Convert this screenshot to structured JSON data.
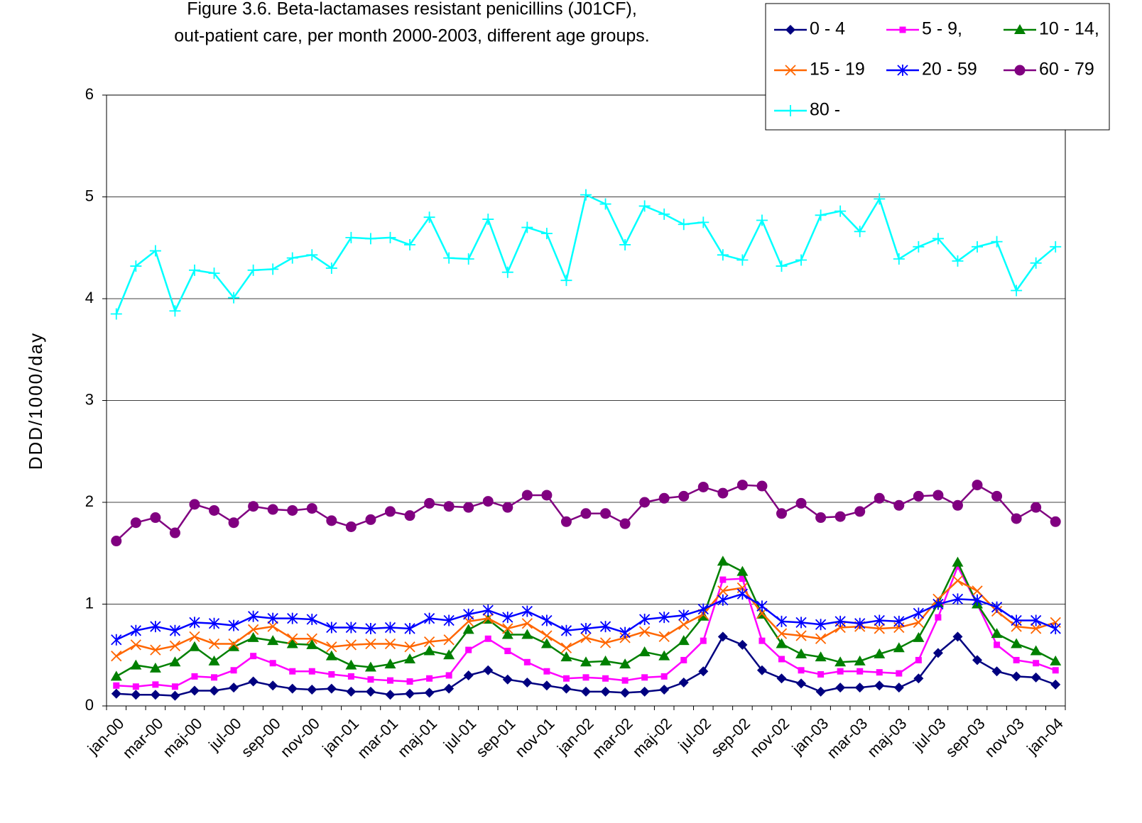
{
  "chart_data": {
    "type": "line",
    "title": [
      "Figure 3.6. Beta-lactamases resistant penicillins (J01CF),",
      "out-patient care, per month 2000-2003, different age groups."
    ],
    "y_label": "DDD/1000/day",
    "categories": [
      "jan-00",
      null,
      "mar-00",
      null,
      "maj-00",
      null,
      "jul-00",
      null,
      "sep-00",
      null,
      "nov-00",
      null,
      "jan-01",
      null,
      "mar-01",
      null,
      "maj-01",
      null,
      "jul-01",
      null,
      "sep-01",
      null,
      "nov-01",
      null,
      "jan-02",
      null,
      "mar-02",
      null,
      "maj-02",
      null,
      "jul-02",
      null,
      "sep-02",
      null,
      "nov-02",
      null,
      "jan-03",
      null,
      "mar-03",
      null,
      "maj-03",
      null,
      "jul-03",
      null,
      "sep-03",
      null,
      "nov-03",
      null,
      "jan-04"
    ],
    "ylim": [
      0,
      6
    ],
    "yticks": [
      0,
      1,
      2,
      3,
      4,
      5,
      6
    ],
    "grid": true,
    "legend": "top-right",
    "series": [
      {
        "name": "0 - 4",
        "color": "#000080",
        "marker": "diamond",
        "values": [
          0.12,
          0.11,
          0.11,
          0.1,
          0.15,
          0.15,
          0.18,
          0.24,
          0.2,
          0.17,
          0.16,
          0.17,
          0.14,
          0.14,
          0.11,
          0.12,
          0.13,
          0.17,
          0.3,
          0.35,
          0.26,
          0.23,
          0.2,
          0.17,
          0.14,
          0.14,
          0.13,
          0.14,
          0.16,
          0.23,
          0.34,
          0.68,
          0.6,
          0.35,
          0.27,
          0.22,
          0.14,
          0.18,
          0.18,
          0.2,
          0.18,
          0.27,
          0.52,
          0.68,
          0.45,
          0.34,
          0.29,
          0.28,
          0.21
        ]
      },
      {
        "name": "5 - 9,",
        "color": "#ff00ff",
        "marker": "square",
        "values": [
          0.2,
          0.19,
          0.21,
          0.19,
          0.29,
          0.28,
          0.35,
          0.49,
          0.42,
          0.34,
          0.34,
          0.31,
          0.29,
          0.26,
          0.25,
          0.24,
          0.27,
          0.3,
          0.55,
          0.66,
          0.54,
          0.43,
          0.34,
          0.27,
          0.28,
          0.27,
          0.25,
          0.28,
          0.29,
          0.45,
          0.64,
          1.24,
          1.25,
          0.64,
          0.46,
          0.35,
          0.31,
          0.34,
          0.34,
          0.33,
          0.32,
          0.45,
          0.87,
          1.37,
          1.0,
          0.6,
          0.45,
          0.42,
          0.35
        ]
      },
      {
        "name": "10 - 14,",
        "color": "#008000",
        "marker": "triangle",
        "values": [
          0.29,
          0.4,
          0.37,
          0.43,
          0.58,
          0.44,
          0.58,
          0.67,
          0.64,
          0.61,
          0.6,
          0.49,
          0.4,
          0.38,
          0.41,
          0.46,
          0.54,
          0.5,
          0.75,
          0.85,
          0.7,
          0.7,
          0.61,
          0.48,
          0.43,
          0.44,
          0.41,
          0.53,
          0.49,
          0.64,
          0.88,
          1.42,
          1.32,
          0.9,
          0.61,
          0.51,
          0.48,
          0.43,
          0.44,
          0.51,
          0.57,
          0.67,
          1.01,
          1.41,
          1.0,
          0.71,
          0.61,
          0.54,
          0.44
        ]
      },
      {
        "name": "15 - 19",
        "color": "#ff6600",
        "marker": "x",
        "values": [
          0.49,
          0.6,
          0.55,
          0.59,
          0.68,
          0.61,
          0.61,
          0.75,
          0.78,
          0.66,
          0.66,
          0.58,
          0.6,
          0.61,
          0.61,
          0.58,
          0.63,
          0.65,
          0.83,
          0.86,
          0.76,
          0.81,
          0.69,
          0.57,
          0.67,
          0.62,
          0.67,
          0.73,
          0.68,
          0.8,
          0.9,
          1.13,
          1.16,
          0.91,
          0.71,
          0.69,
          0.66,
          0.77,
          0.78,
          0.76,
          0.77,
          0.82,
          1.05,
          1.23,
          1.13,
          0.93,
          0.78,
          0.76,
          0.82
        ]
      },
      {
        "name": "20 - 59",
        "color": "#0000ff",
        "marker": "asterisk",
        "values": [
          0.65,
          0.74,
          0.78,
          0.74,
          0.82,
          0.81,
          0.79,
          0.88,
          0.86,
          0.86,
          0.85,
          0.77,
          0.77,
          0.76,
          0.77,
          0.76,
          0.86,
          0.84,
          0.9,
          0.94,
          0.87,
          0.93,
          0.84,
          0.74,
          0.76,
          0.78,
          0.72,
          0.85,
          0.87,
          0.89,
          0.95,
          1.04,
          1.1,
          0.98,
          0.83,
          0.82,
          0.8,
          0.83,
          0.81,
          0.84,
          0.83,
          0.91,
          1.0,
          1.05,
          1.04,
          0.97,
          0.84,
          0.84,
          0.76
        ]
      },
      {
        "name": "60 - 79",
        "color": "#800080",
        "marker": "circle",
        "values": [
          1.62,
          1.8,
          1.85,
          1.7,
          1.98,
          1.92,
          1.8,
          1.96,
          1.93,
          1.92,
          1.94,
          1.82,
          1.76,
          1.83,
          1.91,
          1.87,
          1.99,
          1.96,
          1.95,
          2.01,
          1.95,
          2.07,
          2.07,
          1.81,
          1.89,
          1.89,
          1.79,
          2.0,
          2.04,
          2.06,
          2.15,
          2.09,
          2.17,
          2.16,
          1.89,
          1.99,
          1.85,
          1.86,
          1.91,
          2.04,
          1.97,
          2.06,
          2.07,
          1.97,
          2.17,
          2.06,
          1.84,
          1.95,
          1.81
        ]
      },
      {
        "name": "80 -",
        "color": "#00ffff",
        "marker": "plus",
        "values": [
          3.85,
          4.32,
          4.47,
          3.88,
          4.28,
          4.25,
          4.01,
          4.28,
          4.29,
          4.4,
          4.43,
          4.3,
          4.6,
          4.59,
          4.6,
          4.53,
          4.8,
          4.4,
          4.39,
          4.78,
          4.26,
          4.7,
          4.64,
          4.18,
          5.02,
          4.93,
          4.53,
          4.91,
          4.83,
          4.73,
          4.75,
          4.43,
          4.38,
          4.77,
          4.32,
          4.38,
          4.82,
          4.86,
          4.66,
          4.98,
          4.39,
          4.51,
          4.59,
          4.37,
          4.51,
          4.56,
          4.08,
          4.35,
          4.51
        ]
      }
    ]
  }
}
